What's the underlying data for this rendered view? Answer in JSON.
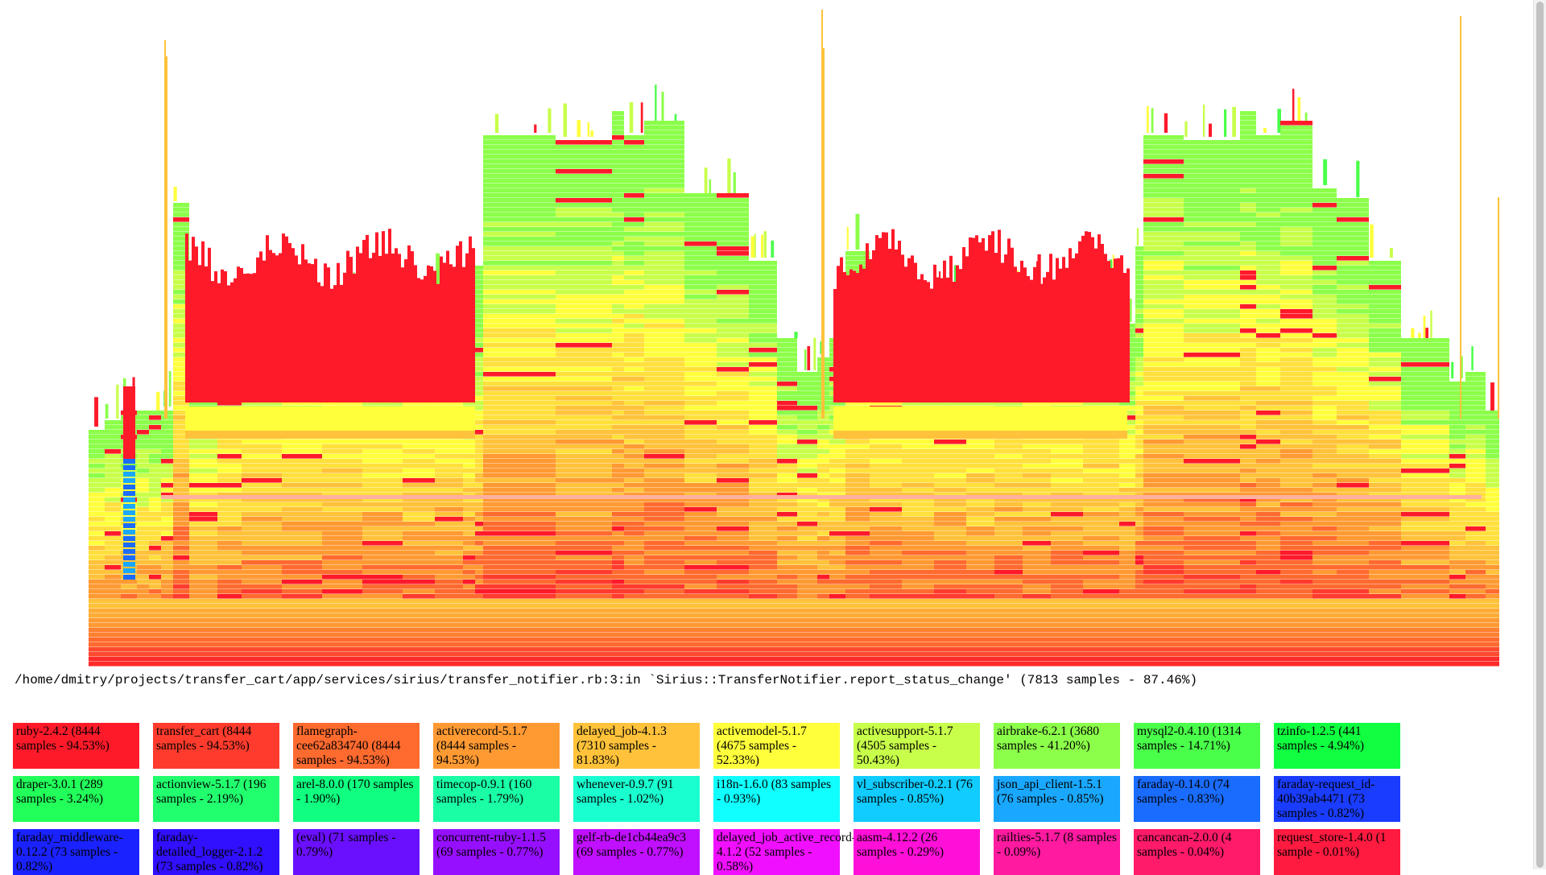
{
  "chart_data": {
    "type": "flamegraph",
    "title": "",
    "hovered_frame": "/home/dmitry/projects/transfer_cart/app/services/sirius/transfer_notifier.rb:3:in `Sirius::TransferNotifier.report_status_change' (7813 samples - 87.46%)",
    "legend": [
      {
        "label": "ruby-2.4.2 (8444 samples - 94.53%)",
        "color": "#ff1a2a"
      },
      {
        "label": "transfer_cart (8444 samples - 94.53%)",
        "color": "#ff3b2d"
      },
      {
        "label": "flamegraph-cee62a834740 (8444 samples - 94.53%)",
        "color": "#ff6a2f"
      },
      {
        "label": "activerecord-5.1.7 (8444 samples - 94.53%)",
        "color": "#ff9a33"
      },
      {
        "label": "delayed_job-4.1.3 (7310 samples - 81.83%)",
        "color": "#ffc23a"
      },
      {
        "label": "activemodel-5.1.7 (4675 samples - 52.33%)",
        "color": "#ffff3c"
      },
      {
        "label": "activesupport-5.1.7 (4505 samples - 50.43%)",
        "color": "#c8ff4a"
      },
      {
        "label": "airbrake-6.2.1 (3680 samples - 41.20%)",
        "color": "#8cff4a"
      },
      {
        "label": "mysql2-0.4.10 (1314 samples - 14.71%)",
        "color": "#4aff4a"
      },
      {
        "label": "tzinfo-1.2.5 (441 samples - 4.94%)",
        "color": "#10ff40"
      },
      {
        "label": "draper-3.0.1 (289 samples - 3.24%)",
        "color": "#22ff5a"
      },
      {
        "label": "actionview-5.1.7 (196 samples - 2.19%)",
        "color": "#22ff6e"
      },
      {
        "label": "arel-8.0.0 (170 samples - 1.90%)",
        "color": "#10ff80"
      },
      {
        "label": "timecop-0.9.1 (160 samples - 1.79%)",
        "color": "#1affa6"
      },
      {
        "label": "whenever-0.9.7 (91 samples - 1.02%)",
        "color": "#1affd0"
      },
      {
        "label": "i18n-1.6.0 (83 samples - 0.93%)",
        "color": "#10ffff"
      },
      {
        "label": "vl_subscriber-0.2.1 (76 samples - 0.85%)",
        "color": "#10ccff"
      },
      {
        "label": "json_api_client-1.5.1 (76 samples - 0.85%)",
        "color": "#1aa8ff"
      },
      {
        "label": "faraday-0.14.0 (74 samples - 0.83%)",
        "color": "#1a6cff"
      },
      {
        "label": "faraday-request_id-40b39ab4471 (73 samples - 0.82%)",
        "color": "#1a3cff"
      },
      {
        "label": "faraday_middleware-0.12.2 (73 samples - 0.82%)",
        "color": "#1a22ff"
      },
      {
        "label": "faraday-detailed_logger-2.1.2 (73 samples - 0.82%)",
        "color": "#3010ff"
      },
      {
        "label": "(eval) (71 samples - 0.79%)",
        "color": "#6a10ff"
      },
      {
        "label": "concurrent-ruby-1.1.5 (69 samples - 0.77%)",
        "color": "#9610ff"
      },
      {
        "label": "gelf-rb-de1cb44ea9c3 (69 samples - 0.77%)",
        "color": "#c010ff"
      },
      {
        "label": "delayed_job_active_record-4.1.2 (52 samples - 0.58%)",
        "color": "#f010ff"
      },
      {
        "label": "aasm-4.12.2 (26 samples - 0.29%)",
        "color": "#ff10d8"
      },
      {
        "label": "railties-5.1.7 (8 samples - 0.09%)",
        "color": "#ff1aa0"
      },
      {
        "label": "cancancan-2.0.0 (4 samples - 0.04%)",
        "color": "#ff1a6a"
      },
      {
        "label": "request_store-1.4.0 (1 sample - 0.01%)",
        "color": "#ff1a40"
      }
    ]
  }
}
